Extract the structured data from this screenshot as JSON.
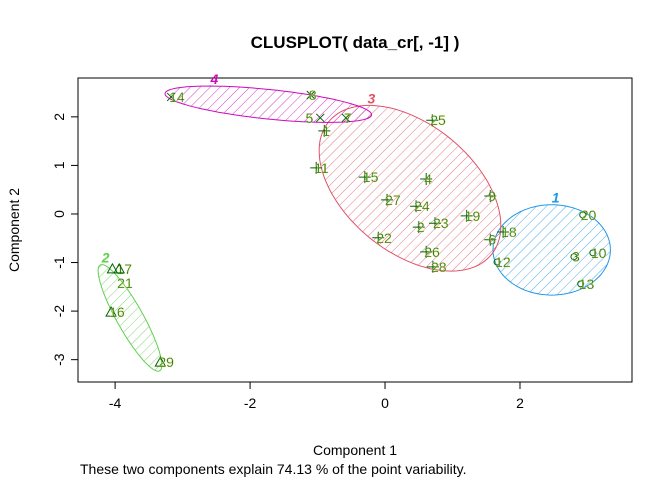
{
  "chart_data": {
    "type": "scatter",
    "title": "CLUSPLOT( data_cr[, -1] )",
    "xlabel": "Component 1",
    "ylabel": "Component 2",
    "subtitle": "These two components explain 74.13 % of the point variability.",
    "xlim": [
      -4.55,
      3.66
    ],
    "ylim": [
      -3.46,
      2.8
    ],
    "xticks": [
      -4,
      -2,
      0,
      2
    ],
    "yticks": [
      -3,
      -2,
      -1,
      0,
      1,
      2
    ],
    "grid": false,
    "point_label_color": "#1B7A1B",
    "marker_color": "#006400",
    "clusters": [
      {
        "id": "1",
        "color": "#2297E6",
        "marker": "circle",
        "center": [
          2.47,
          -0.74
        ],
        "axis_a": [
          0.87,
          0
        ],
        "axis_b": [
          0,
          0.93
        ]
      },
      {
        "id": "2",
        "color": "#61D04F",
        "marker": "triangle",
        "center": [
          -3.78,
          -2.14
        ],
        "axis_a": [
          0.44,
          -1.09
        ],
        "axis_b": [
          0.17,
          0.13
        ]
      },
      {
        "id": "3",
        "color": "#DF536B",
        "marker": "plus",
        "center": [
          0.37,
          0.53
        ],
        "axis_a": [
          1.21,
          -1.36
        ],
        "axis_b": [
          -0.59,
          -1.03
        ]
      },
      {
        "id": "4",
        "color": "#CD0BBC",
        "marker": "x",
        "center": [
          -1.73,
          2.26
        ],
        "axis_a": [
          1.53,
          -0.21
        ],
        "axis_b": [
          -0.03,
          0.31
        ]
      }
    ],
    "points": [
      {
        "label": "1",
        "x": -0.9,
        "y": 1.71,
        "cluster": "3"
      },
      {
        "label": "2",
        "x": 0.5,
        "y": -0.27,
        "cluster": "3"
      },
      {
        "label": "3",
        "x": 2.8,
        "y": -0.88,
        "cluster": "1"
      },
      {
        "label": "4",
        "x": 0.61,
        "y": 0.72,
        "cluster": "3"
      },
      {
        "label": "5",
        "x": -0.96,
        "y": 1.98,
        "cluster": "4"
      },
      {
        "label": "6",
        "x": 1.56,
        "y": -0.53,
        "cluster": "3"
      },
      {
        "label": "7",
        "x": -0.58,
        "y": 1.98,
        "cluster": "4"
      },
      {
        "label": "8",
        "x": -1.1,
        "y": 2.45,
        "cluster": "4"
      },
      {
        "label": "9",
        "x": 1.56,
        "y": 0.37,
        "cluster": "3"
      },
      {
        "label": "10",
        "x": 3.08,
        "y": -0.8,
        "cluster": "1"
      },
      {
        "label": "11",
        "x": -1.02,
        "y": 0.95,
        "cluster": "3"
      },
      {
        "label": "12",
        "x": 1.66,
        "y": -0.99,
        "cluster": "1"
      },
      {
        "label": "13",
        "x": 2.9,
        "y": -1.44,
        "cluster": "1"
      },
      {
        "label": "14",
        "x": -3.17,
        "y": 2.41,
        "cluster": "4"
      },
      {
        "label": "15",
        "x": -0.3,
        "y": 0.76,
        "cluster": "3"
      },
      {
        "label": "16",
        "x": -4.06,
        "y": -2.02,
        "cluster": "2"
      },
      {
        "label": "17",
        "x": -4.04,
        "y": -1.13,
        "cluster": "2"
      },
      {
        "label": "18",
        "x": 1.75,
        "y": -0.37,
        "cluster": "3"
      },
      {
        "label": "19",
        "x": 1.21,
        "y": -0.04,
        "cluster": "3"
      },
      {
        "label": "20",
        "x": 2.93,
        "y": -0.02,
        "cluster": "1"
      },
      {
        "label": "21",
        "x": -3.94,
        "y": -1.13,
        "cluster": "2"
      },
      {
        "label": "22",
        "x": -0.1,
        "y": -0.49,
        "cluster": "3"
      },
      {
        "label": "23",
        "x": 0.74,
        "y": -0.19,
        "cluster": "3"
      },
      {
        "label": "24",
        "x": 0.46,
        "y": 0.16,
        "cluster": "3"
      },
      {
        "label": "25",
        "x": 0.7,
        "y": 1.93,
        "cluster": "3"
      },
      {
        "label": "26",
        "x": 0.61,
        "y": -0.78,
        "cluster": "3"
      },
      {
        "label": "27",
        "x": 0.03,
        "y": 0.29,
        "cluster": "3"
      },
      {
        "label": "28",
        "x": 0.71,
        "y": -1.09,
        "cluster": "3"
      },
      {
        "label": "29",
        "x": -3.33,
        "y": -3.05,
        "cluster": "2"
      }
    ]
  }
}
